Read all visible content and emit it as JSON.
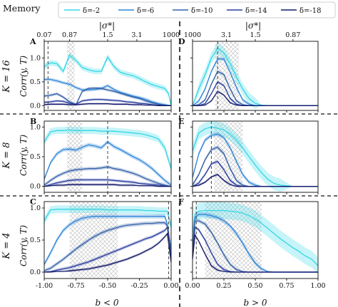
{
  "legend": {
    "title": "Memory",
    "items": [
      {
        "label": "δ=-2",
        "color": "#33d6e6"
      },
      {
        "label": "δ=-6",
        "color": "#2e86d9"
      },
      {
        "label": "δ=-10",
        "color": "#3360a8"
      },
      {
        "label": "δ=-14",
        "color": "#2a3fa0"
      },
      {
        "label": "δ=-18",
        "color": "#141a6b"
      }
    ]
  },
  "top_axes": [
    {
      "label": "|σ*|",
      "ticks": [
        "0.07",
        "0.87",
        "1.5",
        "3.1",
        "1000"
      ],
      "tick_x": [
        -1.0,
        -0.8,
        -0.5,
        -0.27,
        0.0
      ]
    },
    {
      "label": "|σ*|",
      "ticks": [
        "1000",
        "3.1",
        "1.5",
        "0.87"
      ],
      "tick_x": [
        0.0,
        0.27,
        0.5,
        0.8
      ]
    }
  ],
  "row_labels": [
    "K = 16",
    "K = 8",
    "K = 4"
  ],
  "y_axis_label": "Corr(y, T)",
  "y_ticks": [
    "0.0",
    "0.5",
    "1.0"
  ],
  "x_labels": [
    "b < 0",
    "b > 0"
  ],
  "x_ticks_left": [
    "-1.00",
    "-0.75",
    "-0.50",
    "-0.25",
    "0.00"
  ],
  "x_ticks_right": [
    "0.00",
    "0.25",
    "0.50",
    "0.75",
    "1.00"
  ],
  "panel_letters": [
    "A",
    "B",
    "C",
    "D",
    "E",
    "F"
  ],
  "chart_data": [
    {
      "type": "line",
      "panel": "A",
      "xlim": [
        -1.0,
        0.0
      ],
      "ylim": [
        -0.1,
        1.35
      ],
      "vline": -0.97,
      "hatch": [
        -0.82,
        -0.76
      ],
      "x": [
        -1.0,
        -0.95,
        -0.9,
        -0.85,
        -0.8,
        -0.75,
        -0.7,
        -0.65,
        -0.6,
        -0.55,
        -0.5,
        -0.45,
        -0.4,
        -0.35,
        -0.3,
        -0.25,
        -0.2,
        -0.15,
        -0.1,
        -0.05,
        -0.02,
        0.0
      ],
      "series": [
        {
          "name": "δ=-2",
          "values": [
            0.82,
            0.9,
            0.88,
            0.72,
            1.06,
            0.95,
            0.8,
            0.75,
            0.72,
            0.72,
            1.02,
            0.82,
            0.7,
            0.66,
            0.63,
            0.57,
            0.5,
            0.44,
            0.4,
            0.36,
            0.25,
            0.0
          ]
        },
        {
          "name": "δ=-6",
          "values": [
            0.55,
            0.55,
            0.52,
            0.48,
            0.45,
            0.38,
            0.33,
            0.33,
            0.34,
            0.36,
            0.42,
            0.34,
            0.28,
            0.24,
            0.2,
            0.17,
            0.13,
            0.08,
            0.04,
            0.02,
            0.01,
            0.0
          ]
        },
        {
          "name": "δ=-10",
          "values": [
            0.2,
            0.22,
            0.25,
            0.18,
            0.08,
            0.02,
            0.3,
            0.36,
            0.37,
            0.36,
            0.33,
            0.3,
            0.26,
            0.22,
            0.18,
            0.15,
            0.1,
            0.06,
            0.03,
            0.01,
            0.0,
            0.0
          ]
        },
        {
          "name": "δ=-14",
          "values": [
            0.07,
            0.08,
            0.1,
            0.09,
            0.05,
            0.03,
            0.1,
            0.12,
            0.13,
            0.13,
            0.12,
            0.11,
            0.1,
            0.08,
            0.07,
            0.05,
            0.04,
            0.02,
            0.01,
            0.0,
            0.0,
            0.0
          ]
        },
        {
          "name": "δ=-18",
          "values": [
            0.02,
            0.03,
            0.03,
            0.03,
            0.02,
            0.02,
            0.03,
            0.04,
            0.04,
            0.04,
            0.04,
            0.03,
            0.03,
            0.03,
            0.02,
            0.02,
            0.01,
            0.01,
            0.0,
            0.0,
            0.0,
            0.0
          ]
        }
      ]
    },
    {
      "type": "line",
      "panel": "D",
      "xlim": [
        0.0,
        1.0
      ],
      "ylim": [
        -0.1,
        1.35
      ],
      "vline": 0.2,
      "hatch": [
        0.18,
        0.37
      ],
      "x": [
        0.0,
        0.05,
        0.1,
        0.15,
        0.2,
        0.25,
        0.3,
        0.35,
        0.4,
        0.45,
        0.5,
        0.55,
        0.6,
        0.7,
        0.8,
        0.9,
        1.0
      ],
      "series": [
        {
          "name": "δ=-2",
          "values": [
            0.0,
            0.35,
            0.65,
            1.0,
            1.2,
            1.1,
            0.88,
            0.6,
            0.35,
            0.15,
            0.05,
            0.01,
            0.0,
            0.0,
            0.0,
            0.0,
            0.0
          ]
        },
        {
          "name": "δ=-6",
          "values": [
            0.0,
            0.1,
            0.35,
            0.72,
            0.98,
            0.98,
            0.7,
            0.38,
            0.12,
            0.03,
            0.0,
            0.0,
            0.0,
            0.0,
            0.0,
            0.0,
            0.0
          ]
        },
        {
          "name": "δ=-10",
          "values": [
            0.0,
            0.02,
            0.12,
            0.45,
            0.72,
            0.65,
            0.35,
            0.1,
            0.02,
            0.0,
            0.0,
            0.0,
            0.0,
            0.0,
            0.0,
            0.0,
            0.0
          ]
        },
        {
          "name": "δ=-14",
          "values": [
            0.0,
            0.0,
            0.04,
            0.25,
            0.5,
            0.42,
            0.15,
            0.03,
            0.0,
            0.0,
            0.0,
            0.0,
            0.0,
            0.0,
            0.0,
            0.0,
            0.0
          ]
        },
        {
          "name": "δ=-18",
          "values": [
            0.0,
            0.0,
            0.01,
            0.1,
            0.3,
            0.22,
            0.06,
            0.01,
            0.0,
            0.0,
            0.0,
            0.0,
            0.0,
            0.0,
            0.0,
            0.0,
            0.0
          ]
        }
      ]
    },
    {
      "type": "line",
      "panel": "B",
      "xlim": [
        -1.0,
        0.0
      ],
      "ylim": [
        -0.1,
        1.1
      ],
      "vline": -0.5,
      "hatch": [
        -0.82,
        -0.7
      ],
      "x": [
        -1.0,
        -0.95,
        -0.9,
        -0.85,
        -0.8,
        -0.75,
        -0.7,
        -0.65,
        -0.6,
        -0.55,
        -0.5,
        -0.45,
        -0.4,
        -0.35,
        -0.3,
        -0.25,
        -0.2,
        -0.15,
        -0.1,
        -0.05,
        0.0
      ],
      "series": [
        {
          "name": "δ=-2",
          "values": [
            0.75,
            0.92,
            0.94,
            0.94,
            0.95,
            0.94,
            0.94,
            0.94,
            0.94,
            0.93,
            0.93,
            0.93,
            0.92,
            0.91,
            0.9,
            0.89,
            0.87,
            0.84,
            0.8,
            0.65,
            0.3
          ]
        },
        {
          "name": "δ=-6",
          "values": [
            0.12,
            0.4,
            0.55,
            0.62,
            0.63,
            0.61,
            0.66,
            0.7,
            0.68,
            0.65,
            0.75,
            0.67,
            0.62,
            0.56,
            0.5,
            0.45,
            0.38,
            0.3,
            0.2,
            0.1,
            0.02
          ]
        },
        {
          "name": "δ=-10",
          "values": [
            0.02,
            0.1,
            0.17,
            0.22,
            0.26,
            0.28,
            0.29,
            0.3,
            0.3,
            0.31,
            0.33,
            0.3,
            0.28,
            0.25,
            0.22,
            0.18,
            0.13,
            0.09,
            0.05,
            0.02,
            0.0
          ]
        },
        {
          "name": "δ=-14",
          "values": [
            0.0,
            0.03,
            0.06,
            0.08,
            0.1,
            0.11,
            0.11,
            0.11,
            0.11,
            0.11,
            0.11,
            0.1,
            0.09,
            0.08,
            0.07,
            0.05,
            0.04,
            0.03,
            0.02,
            0.01,
            0.0
          ]
        },
        {
          "name": "δ=-18",
          "values": [
            0.0,
            0.01,
            0.02,
            0.02,
            0.03,
            0.03,
            0.03,
            0.03,
            0.03,
            0.03,
            0.03,
            0.03,
            0.02,
            0.02,
            0.02,
            0.01,
            0.01,
            0.01,
            0.0,
            0.0,
            0.0
          ]
        }
      ]
    },
    {
      "type": "line",
      "panel": "E",
      "xlim": [
        0.0,
        1.0
      ],
      "ylim": [
        -0.1,
        1.1
      ],
      "vline": 0.15,
      "hatch": [
        0.17,
        0.4
      ],
      "x": [
        0.0,
        0.05,
        0.1,
        0.15,
        0.2,
        0.25,
        0.3,
        0.35,
        0.4,
        0.45,
        0.5,
        0.55,
        0.6,
        0.65,
        0.7,
        0.8,
        0.9,
        1.0
      ],
      "series": [
        {
          "name": "δ=-2",
          "values": [
            0.6,
            0.9,
            0.97,
            1.0,
            0.98,
            0.95,
            0.88,
            0.78,
            0.65,
            0.5,
            0.36,
            0.23,
            0.12,
            0.05,
            0.02,
            0.0,
            0.0,
            0.0
          ]
        },
        {
          "name": "δ=-6",
          "values": [
            0.15,
            0.55,
            0.78,
            0.86,
            0.88,
            0.82,
            0.65,
            0.42,
            0.2,
            0.07,
            0.02,
            0.0,
            0.0,
            0.0,
            0.0,
            0.0,
            0.0,
            0.0
          ]
        },
        {
          "name": "δ=-10",
          "values": [
            0.02,
            0.2,
            0.45,
            0.62,
            0.66,
            0.55,
            0.3,
            0.1,
            0.02,
            0.0,
            0.0,
            0.0,
            0.0,
            0.0,
            0.0,
            0.0,
            0.0,
            0.0
          ]
        },
        {
          "name": "δ=-14",
          "values": [
            0.0,
            0.06,
            0.2,
            0.38,
            0.42,
            0.28,
            0.1,
            0.02,
            0.0,
            0.0,
            0.0,
            0.0,
            0.0,
            0.0,
            0.0,
            0.0,
            0.0,
            0.0
          ]
        },
        {
          "name": "δ=-18",
          "values": [
            0.0,
            0.02,
            0.07,
            0.16,
            0.2,
            0.1,
            0.03,
            0.0,
            0.0,
            0.0,
            0.0,
            0.0,
            0.0,
            0.0,
            0.0,
            0.0,
            0.0,
            0.0
          ]
        }
      ]
    },
    {
      "type": "line",
      "panel": "C",
      "xlim": [
        -1.0,
        0.0
      ],
      "ylim": [
        -0.1,
        1.1
      ],
      "vline": -0.02,
      "hatch": [
        -0.8,
        -0.42
      ],
      "x": [
        -1.0,
        -0.95,
        -0.9,
        -0.85,
        -0.8,
        -0.75,
        -0.7,
        -0.65,
        -0.6,
        -0.55,
        -0.5,
        -0.45,
        -0.4,
        -0.35,
        -0.3,
        -0.25,
        -0.2,
        -0.15,
        -0.1,
        -0.05,
        -0.03,
        0.0
      ],
      "series": [
        {
          "name": "δ=-2",
          "values": [
            0.8,
            0.97,
            0.98,
            0.98,
            0.98,
            0.98,
            0.98,
            0.98,
            0.98,
            0.98,
            0.97,
            0.97,
            0.97,
            0.97,
            0.97,
            0.97,
            0.96,
            0.96,
            0.95,
            0.95,
            0.95,
            0.7
          ]
        },
        {
          "name": "δ=-6",
          "values": [
            0.12,
            0.3,
            0.5,
            0.65,
            0.74,
            0.8,
            0.84,
            0.86,
            0.87,
            0.87,
            0.87,
            0.87,
            0.87,
            0.87,
            0.87,
            0.87,
            0.87,
            0.87,
            0.87,
            0.87,
            0.75,
            0.35
          ]
        },
        {
          "name": "δ=-10",
          "values": [
            0.02,
            0.06,
            0.13,
            0.2,
            0.28,
            0.36,
            0.43,
            0.5,
            0.56,
            0.61,
            0.65,
            0.68,
            0.71,
            0.73,
            0.74,
            0.75,
            0.76,
            0.76,
            0.77,
            0.77,
            0.72,
            0.3
          ]
        },
        {
          "name": "δ=-14",
          "values": [
            0.0,
            0.01,
            0.03,
            0.05,
            0.07,
            0.1,
            0.13,
            0.16,
            0.2,
            0.24,
            0.28,
            0.32,
            0.36,
            0.4,
            0.44,
            0.48,
            0.52,
            0.55,
            0.6,
            0.65,
            0.7,
            0.2
          ]
        },
        {
          "name": "δ=-18",
          "values": [
            0.0,
            0.0,
            0.01,
            0.01,
            0.02,
            0.03,
            0.04,
            0.05,
            0.07,
            0.09,
            0.11,
            0.14,
            0.17,
            0.2,
            0.24,
            0.28,
            0.33,
            0.38,
            0.45,
            0.55,
            0.6,
            0.15
          ]
        }
      ]
    },
    {
      "type": "line",
      "panel": "F",
      "xlim": [
        0.0,
        1.0
      ],
      "ylim": [
        -0.1,
        1.1
      ],
      "vline": 0.03,
      "hatch": [
        0.1,
        0.55
      ],
      "x": [
        0.0,
        0.02,
        0.05,
        0.1,
        0.15,
        0.2,
        0.25,
        0.3,
        0.35,
        0.4,
        0.45,
        0.5,
        0.55,
        0.6,
        0.65,
        0.7,
        0.75,
        0.8,
        0.85,
        0.9,
        0.95,
        1.0
      ],
      "series": [
        {
          "name": "δ=-2",
          "values": [
            0.6,
            0.9,
            0.95,
            0.96,
            0.96,
            0.96,
            0.96,
            0.95,
            0.94,
            0.92,
            0.88,
            0.83,
            0.76,
            0.68,
            0.6,
            0.52,
            0.45,
            0.38,
            0.32,
            0.25,
            0.2,
            0.1
          ]
        },
        {
          "name": "δ=-6",
          "values": [
            0.4,
            0.86,
            0.9,
            0.9,
            0.88,
            0.85,
            0.8,
            0.72,
            0.6,
            0.45,
            0.28,
            0.14,
            0.05,
            0.01,
            0.0,
            0.0,
            0.0,
            0.0,
            0.0,
            0.0,
            0.0,
            0.0
          ]
        },
        {
          "name": "δ=-10",
          "values": [
            0.3,
            0.8,
            0.8,
            0.75,
            0.62,
            0.45,
            0.27,
            0.12,
            0.04,
            0.01,
            0.0,
            0.0,
            0.0,
            0.0,
            0.0,
            0.0,
            0.0,
            0.0,
            0.0,
            0.0,
            0.0,
            0.0
          ]
        },
        {
          "name": "δ=-14",
          "values": [
            0.25,
            0.7,
            0.66,
            0.5,
            0.3,
            0.12,
            0.04,
            0.01,
            0.0,
            0.0,
            0.0,
            0.0,
            0.0,
            0.0,
            0.0,
            0.0,
            0.0,
            0.0,
            0.0,
            0.0,
            0.0,
            0.0
          ]
        },
        {
          "name": "δ=-18",
          "values": [
            0.2,
            0.58,
            0.48,
            0.28,
            0.1,
            0.03,
            0.01,
            0.0,
            0.0,
            0.0,
            0.0,
            0.0,
            0.0,
            0.0,
            0.0,
            0.0,
            0.0,
            0.0,
            0.0,
            0.0,
            0.0,
            0.0
          ]
        }
      ]
    }
  ]
}
